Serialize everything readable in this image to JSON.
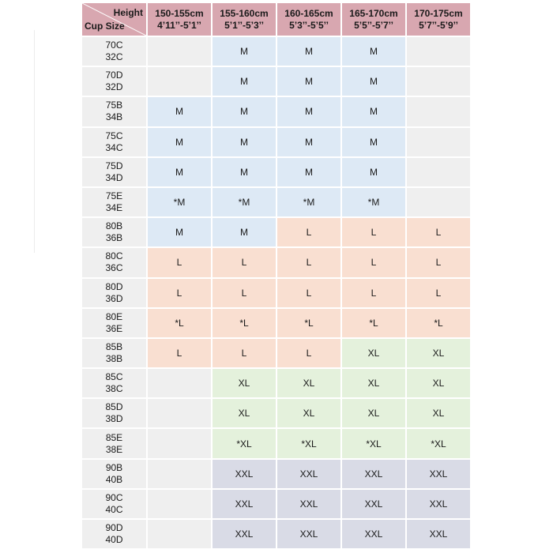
{
  "header": {
    "height_label": "Height",
    "cup_label": "Cup Size",
    "columns": [
      {
        "cm": "150-155cm",
        "ft": "4’11’’-5’1’’"
      },
      {
        "cm": "155-160cm",
        "ft": "5’1’’-5’3’’"
      },
      {
        "cm": "160-165cm",
        "ft": "5’3’’-5’5’’"
      },
      {
        "cm": "165-170cm",
        "ft": "5’5’’-5’7’’"
      },
      {
        "cm": "170-175cm",
        "ft": "5’7’’-5’9’’"
      }
    ]
  },
  "rows": [
    {
      "cup_a": "70C",
      "cup_b": "32C",
      "sizes": [
        "",
        "M",
        "M",
        "M",
        ""
      ]
    },
    {
      "cup_a": "70D",
      "cup_b": "32D",
      "sizes": [
        "",
        "M",
        "M",
        "M",
        ""
      ]
    },
    {
      "cup_a": "75B",
      "cup_b": "34B",
      "sizes": [
        "M",
        "M",
        "M",
        "M",
        ""
      ]
    },
    {
      "cup_a": "75C",
      "cup_b": "34C",
      "sizes": [
        "M",
        "M",
        "M",
        "M",
        ""
      ]
    },
    {
      "cup_a": "75D",
      "cup_b": "34D",
      "sizes": [
        "M",
        "M",
        "M",
        "M",
        ""
      ]
    },
    {
      "cup_a": "75E",
      "cup_b": "34E",
      "sizes": [
        "*M",
        "*M",
        "*M",
        "*M",
        ""
      ]
    },
    {
      "cup_a": "80B",
      "cup_b": "36B",
      "sizes": [
        "M",
        "M",
        "L",
        "L",
        "L"
      ]
    },
    {
      "cup_a": "80C",
      "cup_b": "36C",
      "sizes": [
        "L",
        "L",
        "L",
        "L",
        "L"
      ]
    },
    {
      "cup_a": "80D",
      "cup_b": "36D",
      "sizes": [
        "L",
        "L",
        "L",
        "L",
        "L"
      ]
    },
    {
      "cup_a": "80E",
      "cup_b": "36E",
      "sizes": [
        "*L",
        "*L",
        "*L",
        "*L",
        "*L"
      ]
    },
    {
      "cup_a": "85B",
      "cup_b": "38B",
      "sizes": [
        "L",
        "L",
        "L",
        "XL",
        "XL"
      ]
    },
    {
      "cup_a": "85C",
      "cup_b": "38C",
      "sizes": [
        "",
        "XL",
        "XL",
        "XL",
        "XL"
      ]
    },
    {
      "cup_a": "85D",
      "cup_b": "38D",
      "sizes": [
        "",
        "XL",
        "XL",
        "XL",
        "XL"
      ]
    },
    {
      "cup_a": "85E",
      "cup_b": "38E",
      "sizes": [
        "",
        "*XL",
        "*XL",
        "*XL",
        "*XL"
      ]
    },
    {
      "cup_a": "90B",
      "cup_b": "40B",
      "sizes": [
        "",
        "XXL",
        "XXL",
        "XXL",
        "XXL"
      ]
    },
    {
      "cup_a": "90C",
      "cup_b": "40C",
      "sizes": [
        "",
        "XXL",
        "XXL",
        "XXL",
        "XXL"
      ]
    },
    {
      "cup_a": "90D",
      "cup_b": "40D",
      "sizes": [
        "",
        "XXL",
        "XXL",
        "XXL",
        "XXL"
      ]
    }
  ],
  "colors": {
    "header": "#d8a7b0",
    "cup_column": "#efefef",
    "M": "#dde9f5",
    "L": "#f9dfd1",
    "XL": "#e4f1dc",
    "XXL": "#d9dbe6",
    "empty": "#efefef"
  }
}
